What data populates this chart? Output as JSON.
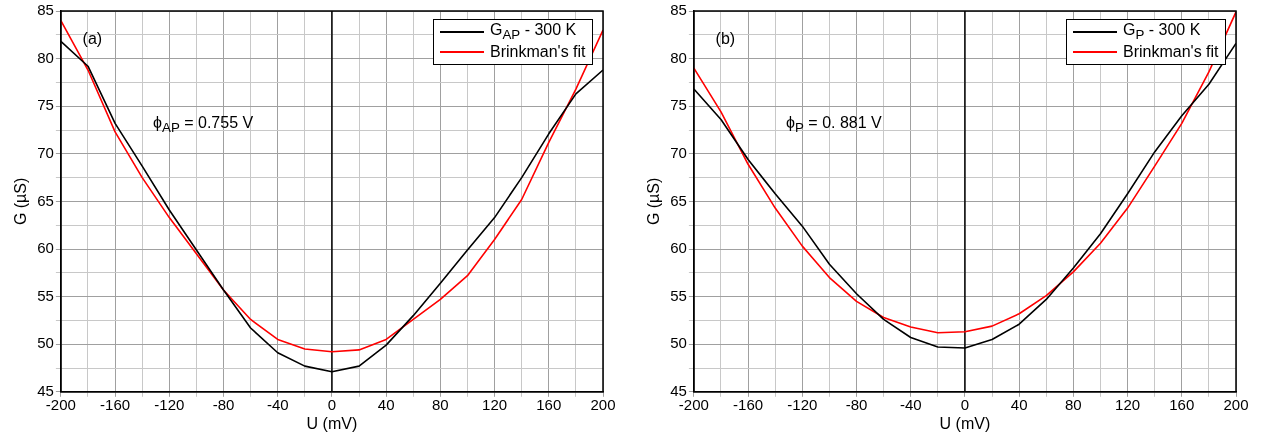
{
  "chart_data": [
    {
      "type": "line",
      "xlabel": "U (mV)",
      "ylabel": "G (µS)",
      "annotations": [
        "(a)",
        "ϕ$_{AP}$ = 0.755 V"
      ],
      "x": [
        -200,
        -180,
        -160,
        -140,
        -120,
        -100,
        -80,
        -60,
        -40,
        -20,
        0,
        20,
        40,
        60,
        80,
        100,
        120,
        140,
        160,
        180,
        200
      ],
      "series": [
        {
          "name": "G$_{AP}$ - 300 K",
          "color": "#000000",
          "values": [
            81.8,
            79.2,
            73.2,
            68.7,
            64.1,
            59.9,
            55.7,
            51.7,
            49.1,
            47.7,
            47.1,
            47.7,
            49.9,
            53.0,
            56.4,
            59.9,
            63.3,
            67.5,
            72.1,
            76.3,
            78.8
          ]
        },
        {
          "name": "Brinkman's fit",
          "color": "#ff0000",
          "values": [
            84.0,
            78.8,
            72.3,
            67.5,
            63.3,
            59.5,
            55.7,
            52.6,
            50.5,
            49.5,
            49.2,
            49.4,
            50.5,
            52.6,
            54.7,
            57.2,
            61.0,
            65.2,
            71.2,
            76.8,
            83.0
          ]
        }
      ],
      "xlim": [
        -200,
        200
      ],
      "ylim": [
        45,
        85
      ],
      "xticks": [
        -200,
        {
          "value": -180,
          "label": null
        },
        -160,
        {
          "value": -140,
          "label": null
        },
        -120,
        {
          "value": -100,
          "label": null
        },
        -80,
        {
          "value": -60,
          "label": null
        },
        -40,
        {
          "value": -20,
          "label": null
        },
        0,
        {
          "value": 20,
          "label": null
        },
        40,
        {
          "value": 60,
          "label": null
        },
        80,
        {
          "value": 100,
          "label": null
        },
        120,
        {
          "value": 140,
          "label": null
        },
        160,
        {
          "value": 180,
          "label": null
        },
        200
      ],
      "yticks": [
        45,
        {
          "value": 47.5,
          "label": null
        },
        50,
        {
          "value": 52.5,
          "label": null
        },
        55,
        {
          "value": 57.5,
          "label": null
        },
        60,
        {
          "value": 62.5,
          "label": null
        },
        65,
        {
          "value": 67.5,
          "label": null
        },
        70,
        {
          "value": 72.5,
          "label": null
        },
        75,
        {
          "value": 77.5,
          "label": null
        },
        80,
        {
          "value": 82.5,
          "label": null
        },
        85
      ],
      "ref_lines": [
        {
          "axis": "x",
          "value": 0,
          "color": "#000000"
        }
      ],
      "grid": true,
      "legend": "top right",
      "marker": "none",
      "line_style": "solid"
    },
    {
      "type": "line",
      "xlabel": "U (mV)",
      "ylabel": "G (µS)",
      "annotations": [
        "(b)",
        "ϕ$_{P}$ = 0. 881 V"
      ],
      "x": [
        -200,
        -180,
        -160,
        -140,
        -120,
        -100,
        -80,
        -60,
        -40,
        -20,
        0,
        20,
        40,
        60,
        80,
        100,
        120,
        140,
        160,
        180,
        200
      ],
      "series": [
        {
          "name": "G$_{P}$ - 300 K",
          "color": "#000000",
          "values": [
            76.8,
            73.6,
            69.4,
            65.8,
            62.4,
            58.4,
            55.3,
            52.6,
            50.7,
            49.7,
            49.6,
            50.5,
            52.1,
            54.7,
            58.0,
            61.6,
            65.8,
            70.2,
            74.0,
            77.3,
            81.6
          ]
        },
        {
          "name": "Brinkman's fit",
          "color": "#ff0000",
          "values": [
            79.0,
            74.4,
            68.9,
            64.3,
            60.3,
            57.0,
            54.5,
            52.8,
            51.8,
            51.2,
            51.3,
            51.9,
            53.2,
            55.1,
            57.6,
            60.6,
            64.3,
            68.7,
            73.2,
            78.6,
            84.9
          ]
        }
      ],
      "xlim": [
        -200,
        200
      ],
      "ylim": [
        45,
        85
      ],
      "xticks": [
        -200,
        {
          "value": -180,
          "label": null
        },
        -160,
        {
          "value": -140,
          "label": null
        },
        -120,
        {
          "value": -100,
          "label": null
        },
        -80,
        {
          "value": -60,
          "label": null
        },
        -40,
        {
          "value": -20,
          "label": null
        },
        0,
        {
          "value": 20,
          "label": null
        },
        40,
        {
          "value": 60,
          "label": null
        },
        80,
        {
          "value": 100,
          "label": null
        },
        120,
        {
          "value": 140,
          "label": null
        },
        160,
        {
          "value": 180,
          "label": null
        },
        200
      ],
      "yticks": [
        45,
        {
          "value": 47.5,
          "label": null
        },
        50,
        {
          "value": 52.5,
          "label": null
        },
        55,
        {
          "value": 57.5,
          "label": null
        },
        60,
        {
          "value": 62.5,
          "label": null
        },
        65,
        {
          "value": 67.5,
          "label": null
        },
        70,
        {
          "value": 72.5,
          "label": null
        },
        75,
        {
          "value": 77.5,
          "label": null
        },
        80,
        {
          "value": 82.5,
          "label": null
        },
        85
      ],
      "ref_lines": [
        {
          "axis": "x",
          "value": 0,
          "color": "#000000"
        }
      ],
      "grid": true,
      "legend": "top right",
      "marker": "none",
      "line_style": "solid"
    }
  ]
}
